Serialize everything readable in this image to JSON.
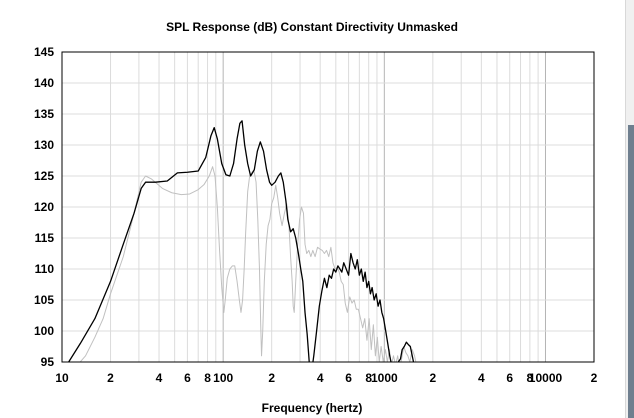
{
  "chart_data": {
    "type": "line",
    "title": "SPL Response (dB)   Constant Directivity   Unmasked",
    "xlabel": "Frequency (hertz)",
    "ylabel": "",
    "x_scale": "log",
    "xlim": [
      10,
      20000
    ],
    "ylim": [
      95,
      145
    ],
    "grid": true,
    "x_tick_labels": [
      {
        "x": 10,
        "label": "10"
      },
      {
        "x": 20,
        "label": "2"
      },
      {
        "x": 40,
        "label": "4"
      },
      {
        "x": 60,
        "label": "6"
      },
      {
        "x": 80,
        "label": "8"
      },
      {
        "x": 100,
        "label": "100"
      },
      {
        "x": 200,
        "label": "2"
      },
      {
        "x": 400,
        "label": "4"
      },
      {
        "x": 600,
        "label": "6"
      },
      {
        "x": 800,
        "label": "8"
      },
      {
        "x": 1000,
        "label": "1000"
      },
      {
        "x": 2000,
        "label": "2"
      },
      {
        "x": 4000,
        "label": "4"
      },
      {
        "x": 6000,
        "label": "6"
      },
      {
        "x": 8000,
        "label": "8"
      },
      {
        "x": 10000,
        "label": "10000"
      },
      {
        "x": 20000,
        "label": "2"
      }
    ],
    "y_ticks": [
      95,
      100,
      105,
      110,
      115,
      120,
      125,
      130,
      135,
      140,
      145
    ],
    "series": [
      {
        "color": "#000000",
        "points": [
          [
            10.5,
            94
          ],
          [
            11,
            95
          ],
          [
            13,
            98
          ],
          [
            16,
            102
          ],
          [
            20,
            108
          ],
          [
            24,
            114
          ],
          [
            28,
            119
          ],
          [
            31,
            123
          ],
          [
            33,
            124
          ],
          [
            38,
            124
          ],
          [
            45,
            124.2
          ],
          [
            52,
            125.5
          ],
          [
            60,
            125.6
          ],
          [
            70,
            125.8
          ],
          [
            78,
            128
          ],
          [
            84,
            131.5
          ],
          [
            88,
            132.8
          ],
          [
            92,
            131
          ],
          [
            98,
            127
          ],
          [
            104,
            125.2
          ],
          [
            110,
            125
          ],
          [
            116,
            127
          ],
          [
            122,
            131
          ],
          [
            127,
            133.5
          ],
          [
            131,
            133.9
          ],
          [
            136,
            130
          ],
          [
            142,
            127
          ],
          [
            148,
            125
          ],
          [
            156,
            126
          ],
          [
            163,
            129
          ],
          [
            170,
            130.5
          ],
          [
            178,
            129
          ],
          [
            186,
            126
          ],
          [
            194,
            124
          ],
          [
            200,
            123.5
          ],
          [
            210,
            124
          ],
          [
            220,
            125
          ],
          [
            228,
            125.5
          ],
          [
            236,
            124
          ],
          [
            245,
            121
          ],
          [
            252,
            118
          ],
          [
            262,
            116
          ],
          [
            272,
            116.5
          ],
          [
            282,
            115
          ],
          [
            293,
            112.5
          ],
          [
            303,
            110
          ],
          [
            312,
            108
          ],
          [
            322,
            103
          ],
          [
            332,
            99.5
          ],
          [
            342,
            95
          ],
          [
            352,
            93
          ],
          [
            365,
            96
          ],
          [
            380,
            100
          ],
          [
            395,
            104
          ],
          [
            410,
            106.5
          ],
          [
            425,
            108.5
          ],
          [
            440,
            107
          ],
          [
            455,
            109
          ],
          [
            470,
            108.5
          ],
          [
            485,
            110
          ],
          [
            500,
            109.5
          ],
          [
            515,
            110.5
          ],
          [
            530,
            110
          ],
          [
            545,
            109.5
          ],
          [
            560,
            111
          ],
          [
            580,
            110
          ],
          [
            600,
            109
          ],
          [
            620,
            112.5
          ],
          [
            640,
            111
          ],
          [
            660,
            110
          ],
          [
            680,
            111.5
          ],
          [
            700,
            109
          ],
          [
            720,
            110
          ],
          [
            740,
            108
          ],
          [
            760,
            109.5
          ],
          [
            780,
            107
          ],
          [
            800,
            108
          ],
          [
            820,
            106
          ],
          [
            840,
            107
          ],
          [
            865,
            105
          ],
          [
            890,
            106
          ],
          [
            915,
            104
          ],
          [
            940,
            105
          ],
          [
            965,
            103
          ],
          [
            990,
            102
          ],
          [
            1020,
            100
          ],
          [
            1050,
            98
          ],
          [
            1080,
            96
          ],
          [
            1110,
            94.5
          ],
          [
            1140,
            94
          ],
          [
            1180,
            94
          ],
          [
            1220,
            95
          ],
          [
            1260,
            95.5
          ],
          [
            1290,
            97
          ],
          [
            1330,
            97.5
          ],
          [
            1370,
            98.2
          ],
          [
            1410,
            97.8
          ],
          [
            1450,
            97.5
          ],
          [
            1490,
            96
          ],
          [
            1540,
            94.2
          ]
        ]
      },
      {
        "color": "#c0c0c0",
        "points": [
          [
            12,
            94
          ],
          [
            14,
            96
          ],
          [
            16,
            99
          ],
          [
            18,
            102
          ],
          [
            20,
            106
          ],
          [
            24,
            112
          ],
          [
            28,
            119
          ],
          [
            31,
            124
          ],
          [
            33,
            125
          ],
          [
            36,
            124.5
          ],
          [
            42,
            123
          ],
          [
            48,
            122.3
          ],
          [
            55,
            122
          ],
          [
            62,
            122.1
          ],
          [
            70,
            122.8
          ],
          [
            76,
            123.6
          ],
          [
            82,
            125
          ],
          [
            86,
            126.5
          ],
          [
            89,
            125
          ],
          [
            92,
            120
          ],
          [
            95,
            113
          ],
          [
            98,
            107
          ],
          [
            101,
            103
          ],
          [
            103,
            105
          ],
          [
            106,
            108.5
          ],
          [
            110,
            110
          ],
          [
            114,
            110.5
          ],
          [
            118,
            110.5
          ],
          [
            122,
            108
          ],
          [
            126,
            105
          ],
          [
            129,
            103
          ],
          [
            132,
            105
          ],
          [
            135,
            110
          ],
          [
            138,
            116
          ],
          [
            142,
            122.5
          ],
          [
            146,
            125
          ],
          [
            150,
            125.5
          ],
          [
            155,
            126
          ],
          [
            160,
            124
          ],
          [
            164,
            118
          ],
          [
            168,
            110
          ],
          [
            171,
            101
          ],
          [
            173,
            96
          ],
          [
            176,
            100
          ],
          [
            180,
            108
          ],
          [
            185,
            114
          ],
          [
            190,
            117
          ],
          [
            195,
            118
          ],
          [
            200,
            120.5
          ],
          [
            206,
            121.5
          ],
          [
            212,
            123.5
          ],
          [
            218,
            121.5
          ],
          [
            224,
            119
          ],
          [
            232,
            117
          ],
          [
            240,
            119
          ],
          [
            248,
            120.5
          ],
          [
            256,
            117
          ],
          [
            262,
            112
          ],
          [
            268,
            108
          ],
          [
            272,
            104
          ],
          [
            276,
            103
          ],
          [
            282,
            108
          ],
          [
            290,
            114
          ],
          [
            298,
            118
          ],
          [
            306,
            120
          ],
          [
            315,
            119
          ],
          [
            322,
            114
          ],
          [
            330,
            112.5
          ],
          [
            340,
            113
          ],
          [
            350,
            112
          ],
          [
            360,
            113
          ],
          [
            372,
            112
          ],
          [
            385,
            113.5
          ],
          [
            400,
            113.2
          ],
          [
            412,
            113
          ],
          [
            425,
            112.5
          ],
          [
            438,
            113
          ],
          [
            452,
            112
          ],
          [
            466,
            113.5
          ],
          [
            480,
            111
          ],
          [
            495,
            110
          ],
          [
            510,
            110.2
          ],
          [
            525,
            109.5
          ],
          [
            540,
            108
          ],
          [
            556,
            107.5
          ],
          [
            572,
            104.5
          ],
          [
            590,
            103
          ],
          [
            610,
            105.5
          ],
          [
            630,
            104.5
          ],
          [
            650,
            105
          ],
          [
            670,
            103.5
          ],
          [
            690,
            103.5
          ],
          [
            712,
            102
          ],
          [
            734,
            100.5
          ],
          [
            756,
            102
          ],
          [
            780,
            98.5
          ],
          [
            805,
            102
          ],
          [
            830,
            97
          ],
          [
            855,
            101
          ],
          [
            880,
            96
          ],
          [
            905,
            99
          ],
          [
            930,
            95
          ],
          [
            955,
            97.5
          ],
          [
            985,
            95
          ],
          [
            1015,
            97
          ],
          [
            1045,
            95
          ],
          [
            1075,
            97
          ],
          [
            1105,
            94.5
          ],
          [
            1140,
            96
          ],
          [
            1175,
            94.5
          ],
          [
            1210,
            96
          ],
          [
            1245,
            94
          ],
          [
            1280,
            95.5
          ],
          [
            1320,
            97.5
          ],
          [
            1360,
            96.5
          ],
          [
            1400,
            96
          ],
          [
            1440,
            95
          ],
          [
            1490,
            97
          ],
          [
            1540,
            96
          ],
          [
            1590,
            94.3
          ],
          [
            1650,
            95
          ],
          [
            1710,
            94.2
          ]
        ]
      }
    ]
  }
}
